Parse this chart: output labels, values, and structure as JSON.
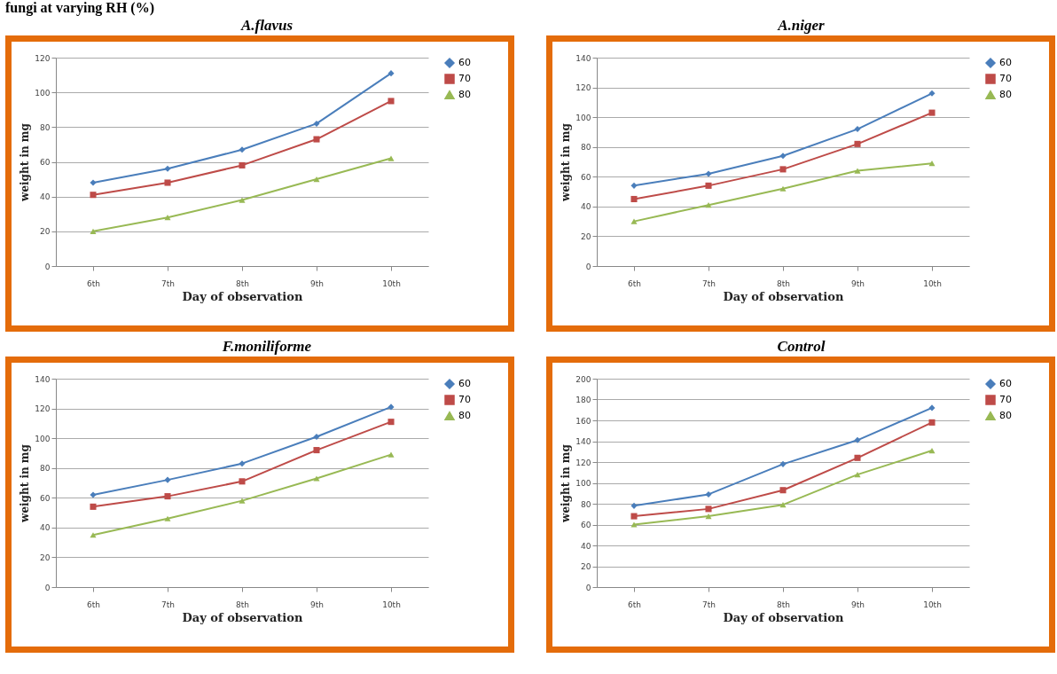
{
  "chart_data": [
    {
      "type": "line",
      "title": "A.flavus",
      "xlabel": "Day of observation",
      "ylabel": "weight in mg",
      "annotations": [
        "fungi at varying RH (%)"
      ],
      "categories": [
        "6th",
        "7th",
        "8th",
        "9th",
        "10th"
      ],
      "ylim": [
        0,
        120
      ],
      "yticks": [
        0,
        20,
        40,
        60,
        80,
        100,
        120
      ],
      "grid": "y",
      "legend": "right",
      "series": [
        {
          "name": "60",
          "color": "#4a7ebb",
          "marker": "diamond",
          "values": [
            48,
            56,
            67,
            82,
            111
          ]
        },
        {
          "name": "70",
          "color": "#be4b48",
          "marker": "square",
          "values": [
            41,
            48,
            58,
            73,
            95
          ]
        },
        {
          "name": "80",
          "color": "#98b954",
          "marker": "triangle",
          "values": [
            20,
            28,
            38,
            50,
            62
          ]
        }
      ]
    },
    {
      "type": "line",
      "title": "A.niger",
      "xlabel": "Day of observation",
      "ylabel": "weight in mg",
      "categories": [
        "6th",
        "7th",
        "8th",
        "9th",
        "10th"
      ],
      "ylim": [
        0,
        140
      ],
      "yticks": [
        0,
        20,
        40,
        60,
        80,
        100,
        120,
        140
      ],
      "grid": "y",
      "legend": "right",
      "series": [
        {
          "name": "60",
          "color": "#4a7ebb",
          "marker": "diamond",
          "values": [
            54,
            62,
            74,
            92,
            116
          ]
        },
        {
          "name": "70",
          "color": "#be4b48",
          "marker": "square",
          "values": [
            45,
            54,
            65,
            82,
            103
          ]
        },
        {
          "name": "80",
          "color": "#98b954",
          "marker": "triangle",
          "values": [
            30,
            41,
            52,
            64,
            69
          ]
        }
      ]
    },
    {
      "type": "line",
      "title": "F.moniliforme",
      "xlabel": "Day of observation",
      "ylabel": "weight in mg",
      "categories": [
        "6th",
        "7th",
        "8th",
        "9th",
        "10th"
      ],
      "ylim": [
        0,
        140
      ],
      "yticks": [
        0,
        20,
        40,
        60,
        80,
        100,
        120,
        140
      ],
      "grid": "y",
      "legend": "right",
      "series": [
        {
          "name": "60",
          "color": "#4a7ebb",
          "marker": "diamond",
          "values": [
            62,
            72,
            83,
            101,
            121
          ]
        },
        {
          "name": "70",
          "color": "#be4b48",
          "marker": "square",
          "values": [
            54,
            61,
            71,
            92,
            111
          ]
        },
        {
          "name": "80",
          "color": "#98b954",
          "marker": "triangle",
          "values": [
            35,
            46,
            58,
            73,
            89
          ]
        }
      ]
    },
    {
      "type": "line",
      "title": "Control",
      "xlabel": "Day of observation",
      "ylabel": "weight in mg",
      "categories": [
        "6th",
        "7th",
        "8th",
        "9th",
        "10th"
      ],
      "ylim": [
        0,
        200
      ],
      "yticks": [
        0,
        20,
        40,
        60,
        80,
        100,
        120,
        140,
        160,
        180,
        200
      ],
      "grid": "y",
      "legend": "right",
      "series": [
        {
          "name": "60",
          "color": "#4a7ebb",
          "marker": "diamond",
          "values": [
            78,
            89,
            118,
            141,
            172
          ]
        },
        {
          "name": "70",
          "color": "#be4b48",
          "marker": "square",
          "values": [
            68,
            75,
            93,
            124,
            158
          ]
        },
        {
          "name": "80",
          "color": "#98b954",
          "marker": "triangle",
          "values": [
            60,
            68,
            79,
            108,
            131
          ]
        }
      ]
    }
  ]
}
